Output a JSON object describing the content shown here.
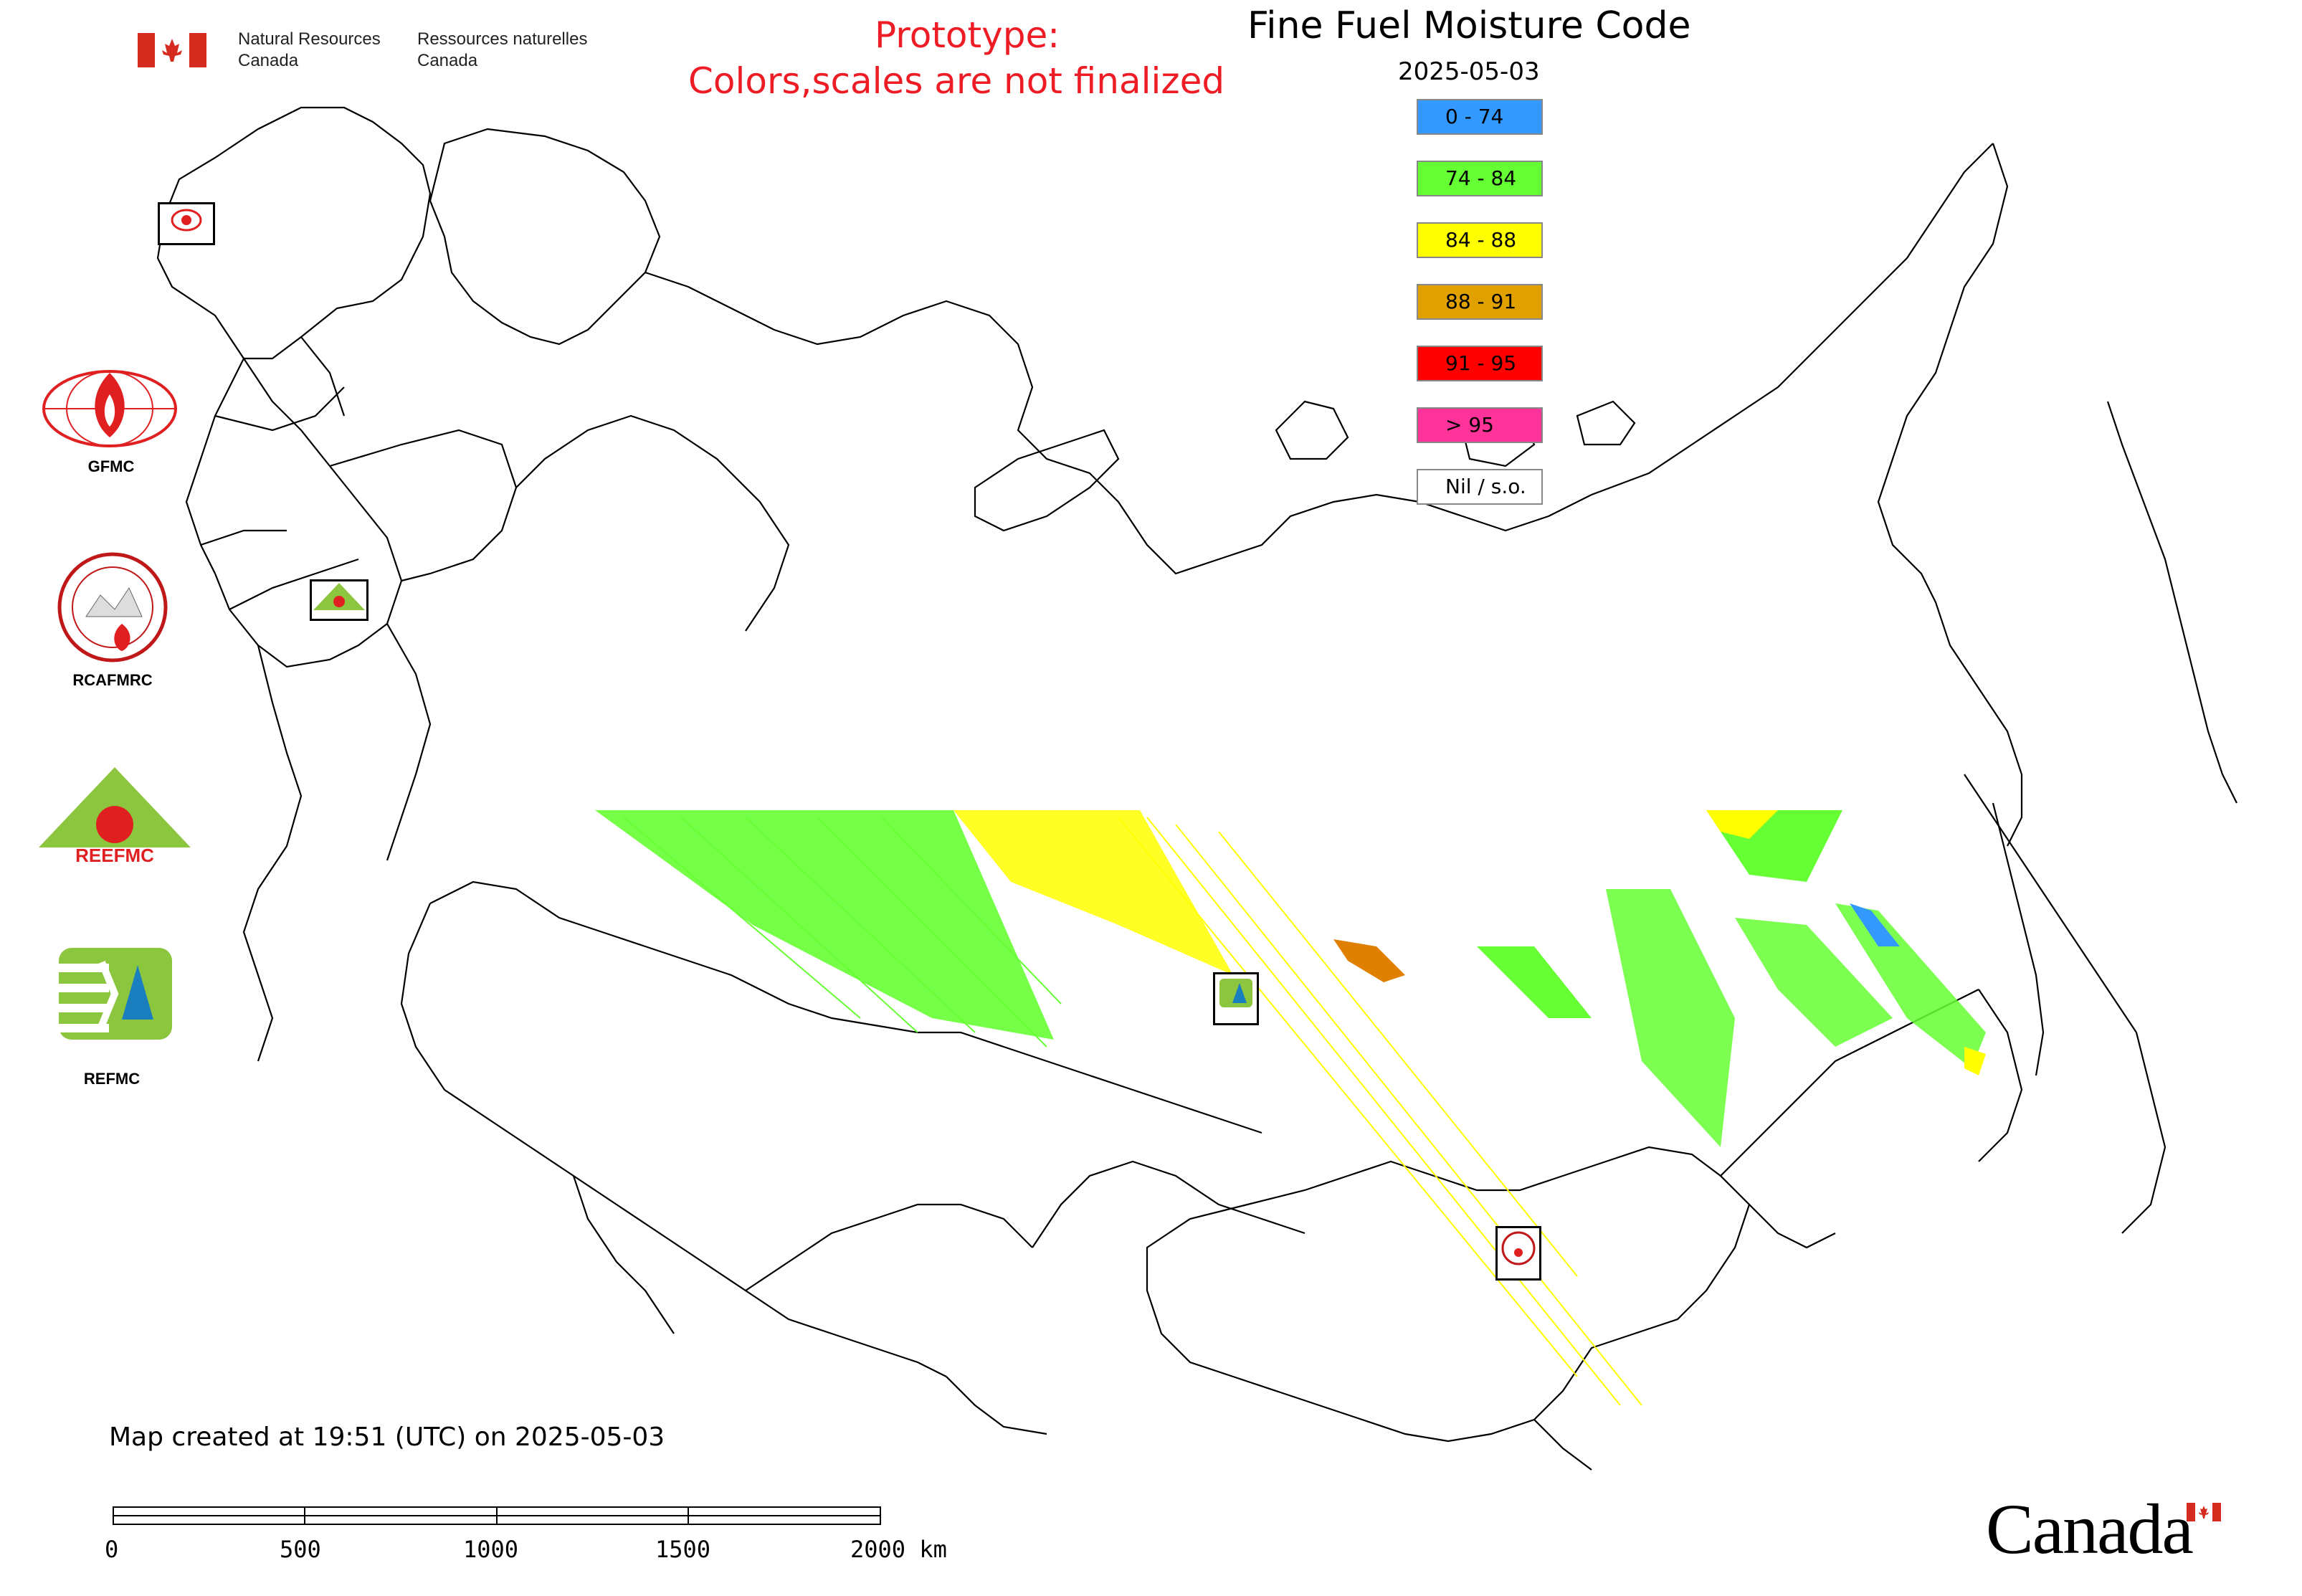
{
  "header": {
    "agency_en_line1": "Natural Resources",
    "agency_en_line2": "Canada",
    "agency_fr_line1": "Ressources naturelles",
    "agency_fr_line2": "Canada",
    "prototype_line1": "Prototype:",
    "prototype_line2": "Colors,scales are not finalized"
  },
  "map": {
    "title": "Fine Fuel Moisture Code",
    "date": "2025-05-03",
    "created_text": "Map created at 19:51 (UTC) on 2025-05-03"
  },
  "legend": [
    {
      "label": "0 - 74",
      "color": "#3399ff"
    },
    {
      "label": "74 - 84",
      "color": "#66ff33"
    },
    {
      "label": "84 - 88",
      "color": "#ffff00"
    },
    {
      "label": "88 - 91",
      "color": "#e0a000"
    },
    {
      "label": "91 - 95",
      "color": "#ff0000"
    },
    {
      "label": "> 95",
      "color": "#ff3399"
    },
    {
      "label": "Nil / s.o.",
      "color": "#ffffff"
    }
  ],
  "logos": {
    "gfmc": "GFMC",
    "rcafmrc": "RCAFMRC",
    "reefmc": "REEFMC",
    "refmc": "REFMC",
    "rcafmrc_badge": "RCAFMRC",
    "reefmc_badge": "REEFMC",
    "refmc_badge": "REFMC",
    "gfmc_badge": "GFMC"
  },
  "scale_bar": {
    "labels": [
      "0",
      "500",
      "1000",
      "1500",
      "2000 km"
    ]
  },
  "footer": {
    "wordmark": "Canada"
  },
  "colors": {
    "prototype_text": "#ee1c25",
    "canada_red": "#d52b1e",
    "border_lines": "#000000"
  }
}
